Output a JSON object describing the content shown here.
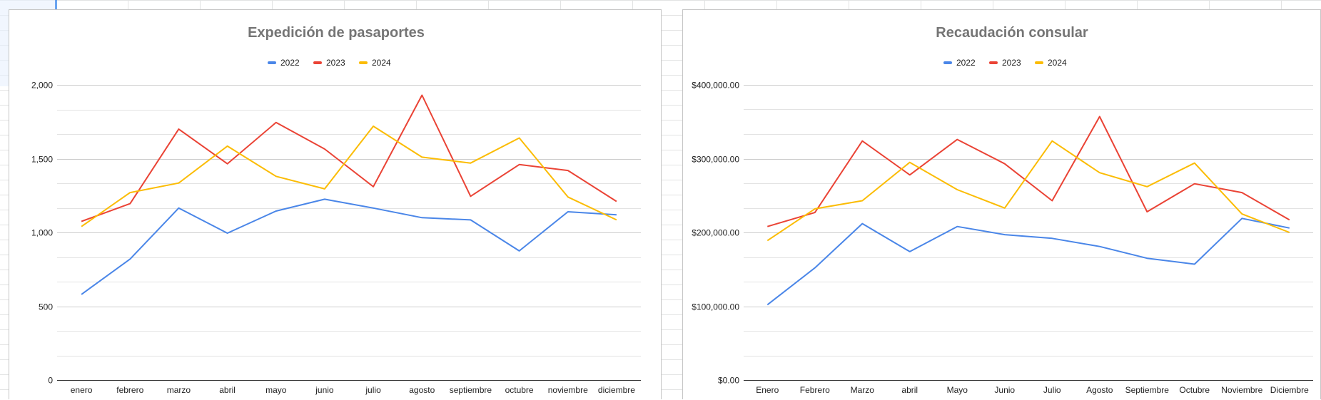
{
  "colors": {
    "series": [
      "#4a86e8",
      "#ea4335",
      "#fbbc04"
    ],
    "gridline": "#e3e3e3",
    "gridline_major": "#cccccc",
    "axis": "#333333",
    "sheet_grid": "#e2e3e3"
  },
  "chart_data": [
    {
      "type": "line",
      "title": "Expedición de pasaportes",
      "xlabel": "",
      "ylabel": "",
      "categories": [
        "enero",
        "febrero",
        "marzo",
        "abril",
        "mayo",
        "junio",
        "julio",
        "agosto",
        "septiembre",
        "octubre",
        "noviembre",
        "diciembre"
      ],
      "series": [
        {
          "name": "2022",
          "values": [
            580,
            820,
            1165,
            995,
            1145,
            1225,
            1165,
            1100,
            1085,
            875,
            1140,
            1120
          ]
        },
        {
          "name": "2023",
          "values": [
            1075,
            1195,
            1700,
            1465,
            1745,
            1565,
            1310,
            1930,
            1245,
            1460,
            1420,
            1210
          ]
        },
        {
          "name": "2024",
          "values": [
            1040,
            1270,
            1335,
            1585,
            1380,
            1295,
            1720,
            1510,
            1470,
            1640,
            1240,
            1085
          ]
        }
      ],
      "ylim": [
        0,
        2000
      ],
      "yticks": [
        0,
        500,
        1000,
        1500,
        2000
      ],
      "ytick_labels": [
        "0",
        "500",
        "1,000",
        "1,500",
        "2,000"
      ],
      "grid": true,
      "legend": "top-center"
    },
    {
      "type": "line",
      "title": "Recaudación consular",
      "xlabel": "",
      "ylabel": "",
      "categories": [
        "Enero",
        "Febrero",
        "Marzo",
        "abril",
        "Mayo",
        "Junio",
        "Julio",
        "Agosto",
        "Septiembre",
        "Octubre",
        "Noviembre",
        "Diciembre"
      ],
      "series": [
        {
          "name": "2022",
          "values": [
            102000,
            152000,
            212000,
            174000,
            208000,
            197000,
            192000,
            181000,
            165000,
            157000,
            219000,
            206000
          ]
        },
        {
          "name": "2023",
          "values": [
            208000,
            227000,
            324000,
            278000,
            326000,
            293000,
            243000,
            357000,
            228000,
            266000,
            254000,
            217000
          ]
        },
        {
          "name": "2024",
          "values": [
            189000,
            232000,
            243000,
            295000,
            258000,
            233000,
            324000,
            281000,
            262000,
            294000,
            225000,
            200000
          ]
        }
      ],
      "ylim": [
        0,
        400000
      ],
      "yticks": [
        0,
        100000,
        200000,
        300000,
        400000
      ],
      "ytick_labels": [
        "$0.00",
        "$100,000.00",
        "$200,000.00",
        "$300,000.00",
        "$400,000.00"
      ],
      "grid": true,
      "legend": "top-center"
    }
  ]
}
